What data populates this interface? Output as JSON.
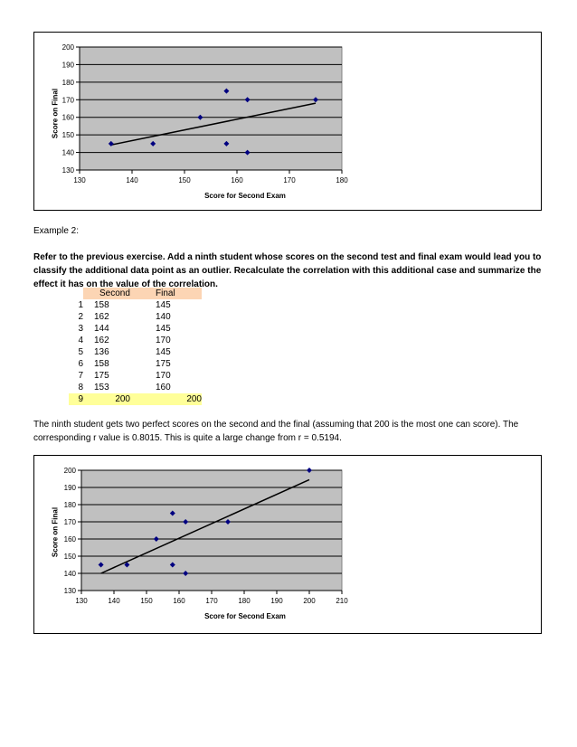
{
  "example_label": "Example 2:",
  "prompt": "Refer to the previous exercise. Add a ninth student whose scores on the second test and final exam would lead you to classify the additional data point as an outlier. Recalculate the correlation with this additional case and summarize the effect it has on the value of the correlation.",
  "table": {
    "headers": [
      "Second",
      "Final"
    ],
    "rows": [
      {
        "n": "1",
        "second": "158",
        "final": "145"
      },
      {
        "n": "2",
        "second": "162",
        "final": "140"
      },
      {
        "n": "3",
        "second": "144",
        "final": "145"
      },
      {
        "n": "4",
        "second": "162",
        "final": "170"
      },
      {
        "n": "5",
        "second": "136",
        "final": "145"
      },
      {
        "n": "6",
        "second": "158",
        "final": "175"
      },
      {
        "n": "7",
        "second": "175",
        "final": "170"
      },
      {
        "n": "8",
        "second": "153",
        "final": "160"
      },
      {
        "n": "9",
        "second": "200",
        "final": "200"
      }
    ],
    "header_color": "#fcd5b4",
    "highlight_color": "#ffff99"
  },
  "result_text": "The ninth student gets two perfect scores on the second and the final (assuming that 200 is the most one can score).  The corresponding r value is 0.8015.  This is quite a large change from r = 0.5194.",
  "colors": {
    "plot_bg": "#c0c0c0",
    "point": "#000080",
    "line": "#000000"
  },
  "chart_data": [
    {
      "type": "scatter",
      "xlabel": "Score for Second Exam",
      "ylabel": "Score on Final",
      "xlim": [
        130,
        180
      ],
      "ylim": [
        130,
        200
      ],
      "xticks": [
        130,
        140,
        150,
        160,
        170,
        180
      ],
      "yticks": [
        130,
        140,
        150,
        160,
        170,
        180,
        190,
        200
      ],
      "grid": "horizontal",
      "points": [
        [
          158,
          145
        ],
        [
          162,
          140
        ],
        [
          144,
          145
        ],
        [
          162,
          170
        ],
        [
          136,
          145
        ],
        [
          158,
          175
        ],
        [
          175,
          170
        ],
        [
          153,
          160
        ]
      ],
      "trendline": [
        [
          136,
          144.3
        ],
        [
          175,
          168
        ]
      ]
    },
    {
      "type": "scatter",
      "xlabel": "Score for Second Exam",
      "ylabel": "Score on Final",
      "xlim": [
        130,
        210
      ],
      "ylim": [
        130,
        200
      ],
      "xticks": [
        130,
        140,
        150,
        160,
        170,
        180,
        190,
        200,
        210
      ],
      "yticks": [
        130,
        140,
        150,
        160,
        170,
        180,
        190,
        200
      ],
      "grid": "horizontal",
      "points": [
        [
          158,
          145
        ],
        [
          162,
          140
        ],
        [
          144,
          145
        ],
        [
          162,
          170
        ],
        [
          136,
          145
        ],
        [
          158,
          175
        ],
        [
          175,
          170
        ],
        [
          153,
          160
        ],
        [
          200,
          200
        ]
      ],
      "trendline": [
        [
          136,
          140
        ],
        [
          200,
          194.5
        ]
      ]
    }
  ]
}
